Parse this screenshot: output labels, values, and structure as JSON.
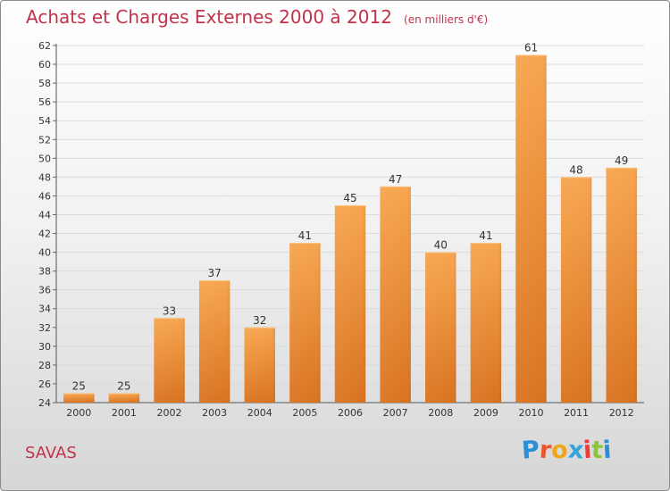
{
  "chart_data": {
    "type": "bar",
    "title": "Achats et Charges Externes 2000 à 2012",
    "unit_label": "(en milliers d'€)",
    "categories": [
      "2000",
      "2001",
      "2002",
      "2003",
      "2004",
      "2005",
      "2006",
      "2007",
      "2008",
      "2009",
      "2010",
      "2011",
      "2012"
    ],
    "values": [
      25,
      25,
      33,
      37,
      32,
      41,
      45,
      47,
      40,
      41,
      61,
      48,
      49
    ],
    "ylim": [
      24,
      62
    ],
    "yticks": [
      24,
      26,
      28,
      30,
      32,
      34,
      36,
      38,
      40,
      42,
      44,
      46,
      48,
      50,
      52,
      54,
      56,
      58,
      60,
      62
    ],
    "xlabel": "",
    "ylabel": "",
    "grid": true,
    "bar_color": "#f0923a",
    "title_color": "#c0334a"
  },
  "footer": {
    "commune": "SAVAS",
    "logo": "Proxiti"
  },
  "logo_colors": [
    "#2b8fd6",
    "#e8572a",
    "#f2a516",
    "#35a4dc",
    "#ef3b3b",
    "#8cc63f",
    "#2b8fd6"
  ]
}
